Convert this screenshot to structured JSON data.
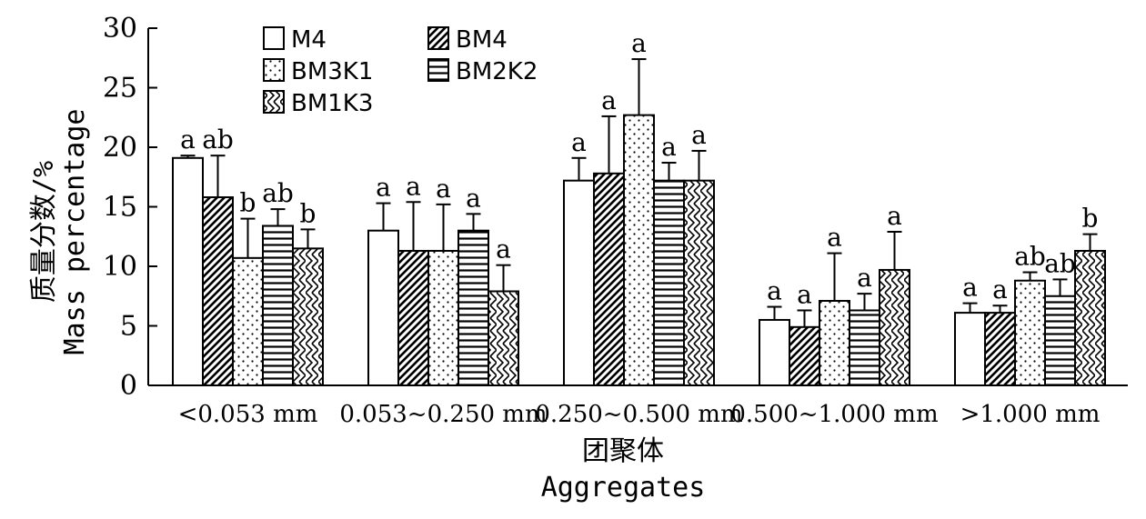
{
  "chart_data": {
    "type": "bar",
    "title": "",
    "xlabel_cn": "团聚体",
    "xlabel_en": "Aggregates",
    "ylabel_cn": "质量分数/%",
    "ylabel_en": "Mass percentage",
    "ylim": [
      0,
      30
    ],
    "yticks": [
      "0",
      "5",
      "10",
      "15",
      "20",
      "25",
      "30"
    ],
    "grid": false,
    "legend_position": "top-left",
    "categories": [
      "<0.053 mm",
      "0.053~0.250 mm",
      "0.250~0.500 mm",
      "0.500~1.000 mm",
      ">1.000 mm"
    ],
    "series": [
      {
        "name": "M4",
        "pattern": "blank",
        "values": [
          19.1,
          13.0,
          17.2,
          5.5,
          6.1
        ],
        "errors": [
          0.2,
          2.3,
          1.9,
          1.1,
          0.8
        ],
        "labels": [
          "a",
          "a",
          "a",
          "a",
          "a"
        ]
      },
      {
        "name": "BM4",
        "pattern": "diagonal",
        "values": [
          15.8,
          11.3,
          17.8,
          4.9,
          6.1
        ],
        "errors": [
          3.5,
          4.1,
          4.8,
          1.4,
          0.6
        ],
        "labels": [
          "ab",
          "a",
          "a",
          "a",
          "a"
        ]
      },
      {
        "name": "BM3K1",
        "pattern": "dots",
        "values": [
          10.7,
          11.3,
          22.7,
          7.1,
          8.8
        ],
        "errors": [
          3.3,
          3.9,
          4.7,
          4.0,
          0.7
        ],
        "labels": [
          "b",
          "a",
          "a",
          "a",
          "ab"
        ]
      },
      {
        "name": "BM2K2",
        "pattern": "horizontal",
        "values": [
          13.4,
          13.0,
          17.2,
          6.3,
          7.5
        ],
        "errors": [
          1.4,
          1.4,
          1.5,
          1.4,
          1.4
        ],
        "labels": [
          "ab",
          "a",
          "a",
          "a",
          "ab"
        ]
      },
      {
        "name": "BM1K3",
        "pattern": "zigzag",
        "values": [
          11.5,
          7.9,
          17.2,
          9.7,
          11.3
        ],
        "errors": [
          1.6,
          2.2,
          2.5,
          3.2,
          1.4
        ],
        "labels": [
          "b",
          "a",
          "a",
          "a",
          "b"
        ]
      }
    ]
  }
}
